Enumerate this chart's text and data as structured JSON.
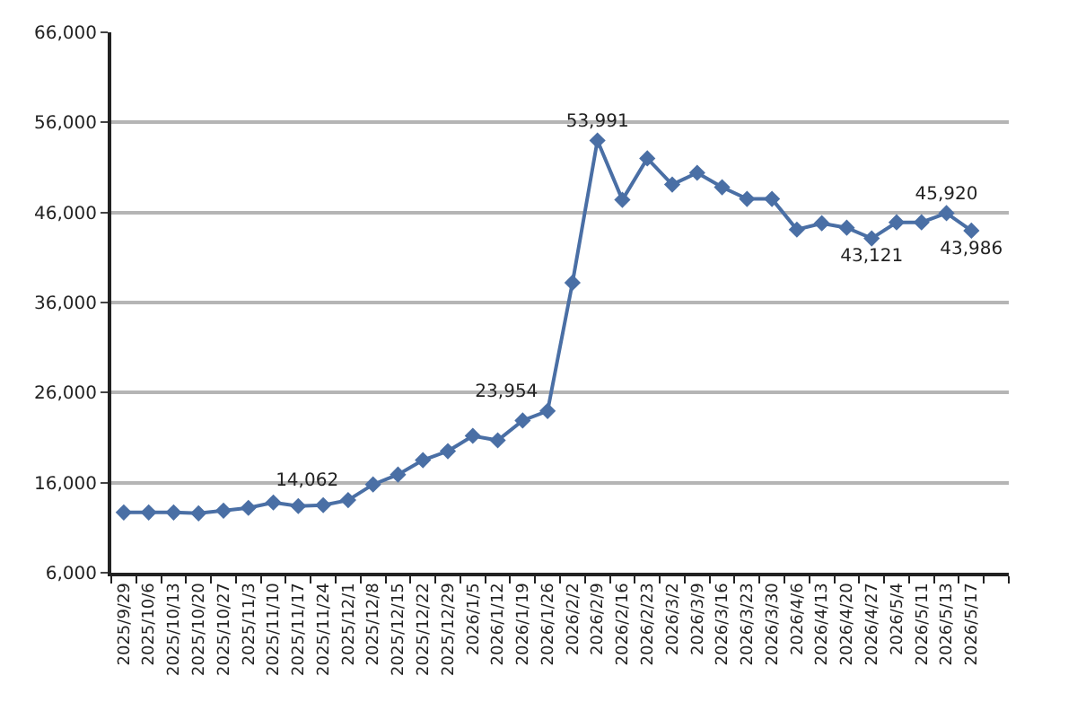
{
  "chart_data": {
    "type": "line",
    "categories": [
      "2025/9/29",
      "2025/10/6",
      "2025/10/13",
      "2025/10/20",
      "2025/10/27",
      "2025/11/3",
      "2025/11/10",
      "2025/11/17",
      "2025/11/24",
      "2025/12/1",
      "2025/12/8",
      "2025/12/15",
      "2025/12/22",
      "2025/12/29",
      "2026/1/5",
      "2026/1/12",
      "2026/1/19",
      "2026/1/26",
      "2026/2/2",
      "2026/2/9",
      "2026/2/16",
      "2026/2/23",
      "2026/3/2",
      "2026/3/9",
      "2026/3/16",
      "2026/3/23",
      "2026/3/30",
      "2026/4/6",
      "2026/4/13",
      "2026/4/20",
      "2026/4/27",
      "2026/5/4",
      "2026/5/11",
      "2026/5/13",
      "2026/5/17",
      null
    ],
    "series": [
      {
        "color": "#4a6fa5",
        "values": [
          12700,
          12700,
          12700,
          12600,
          12900,
          13200,
          13800,
          13400,
          13500,
          14062,
          15800,
          16900,
          18500,
          19500,
          21200,
          20700,
          22900,
          23954,
          38200,
          53991,
          47400,
          52000,
          49100,
          50400,
          48800,
          47500,
          47500,
          44100,
          44800,
          44300,
          43121,
          44900,
          44900,
          45920,
          43986,
          null
        ],
        "value_labels": [
          null,
          null,
          null,
          null,
          null,
          null,
          null,
          null,
          null,
          "14,062",
          null,
          null,
          null,
          null,
          null,
          null,
          null,
          "23,954",
          null,
          "53,991",
          null,
          null,
          null,
          null,
          null,
          null,
          null,
          null,
          null,
          null,
          "43,121",
          null,
          null,
          "45,920",
          "43,986",
          null
        ]
      }
    ],
    "ylim": [
      6000,
      66000
    ],
    "yticks": [
      {
        "value": 6000,
        "label": "6,000"
      },
      {
        "value": 16000,
        "label": "16,000"
      },
      {
        "value": 26000,
        "label": "26,000"
      },
      {
        "value": 36000,
        "label": "36,000"
      },
      {
        "value": 46000,
        "label": "46,000"
      },
      {
        "value": 56000,
        "label": "56,000"
      },
      {
        "value": 66000,
        "label": "66,000"
      }
    ],
    "grid": "y",
    "marker": "diamond",
    "line_style": "solid"
  }
}
